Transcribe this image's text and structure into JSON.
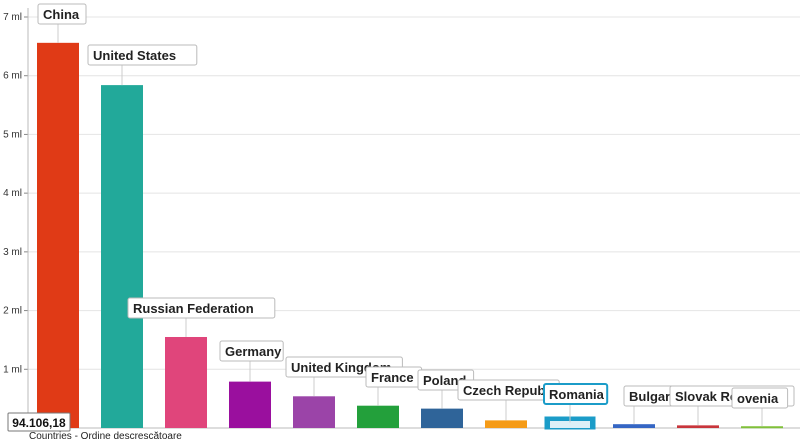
{
  "chart_data": {
    "type": "bar",
    "title": "",
    "xlabel": "Countries - Ordine descrescătoare",
    "ylabel": "",
    "ylim": [
      0,
      7000000
    ],
    "y_ticks": [
      {
        "value": 1000000,
        "label": "1 ml"
      },
      {
        "value": 2000000,
        "label": "2 ml"
      },
      {
        "value": 3000000,
        "label": "3 ml"
      },
      {
        "value": 4000000,
        "label": "4 ml"
      },
      {
        "value": 5000000,
        "label": "5 ml"
      },
      {
        "value": 6000000,
        "label": "6 ml"
      },
      {
        "value": 7000000,
        "label": "7 ml"
      }
    ],
    "grid": true,
    "categories": [
      "China",
      "United States",
      "Russian Federation",
      "Germany",
      "United Kingdom",
      "France",
      "Poland",
      "Czech Republ",
      "Romania",
      "Bulgar",
      "Slovak Republic",
      "ovenia"
    ],
    "values": [
      6560000,
      5840000,
      1550000,
      790000,
      540000,
      380000,
      330000,
      130000,
      94106.18,
      65000,
      45000,
      30000
    ],
    "colors": [
      "#e03a16",
      "#22a99a",
      "#e0457b",
      "#9a0f9e",
      "#9b44a8",
      "#23a03b",
      "#2f6499",
      "#f59b17",
      "#1b9cc8",
      "#3566c4",
      "#c8353b",
      "#80c03a"
    ],
    "highlight_index": 8,
    "highlight_value_label": "94.106,18"
  }
}
